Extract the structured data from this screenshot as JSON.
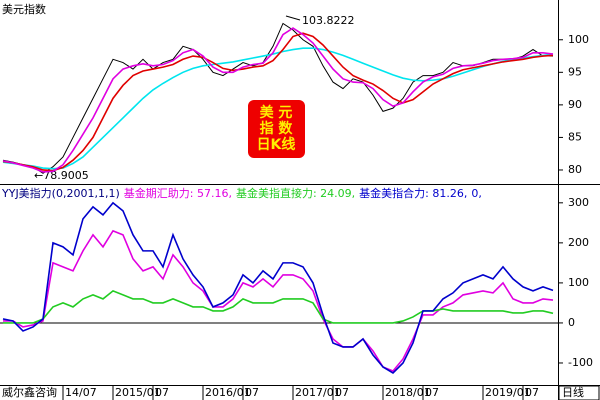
{
  "chart_data": [
    {
      "type": "line",
      "title": "美元指数",
      "annotations": [
        "103.8222",
        "←78.9005"
      ],
      "badge": [
        "美 元",
        "指 数",
        "日K线"
      ],
      "ylim": [
        78,
        105.8
      ],
      "yticks": [
        80,
        85,
        90,
        95,
        100
      ],
      "series": [
        {
          "color": "#000000",
          "values": [
            81.5,
            81.2,
            80.8,
            80.5,
            79.5,
            80.5,
            82,
            85,
            88,
            91,
            94,
            97,
            96.5,
            95.5,
            97,
            95.5,
            96.5,
            97,
            99,
            98.5,
            97,
            95,
            94.5,
            95.5,
            96.5,
            96,
            96.5,
            99,
            102.5,
            101.5,
            100,
            99,
            96,
            93.5,
            92.5,
            94,
            93.5,
            91.5,
            89,
            89.5,
            91,
            93.5,
            94.5,
            94.5,
            95,
            96.5,
            96,
            96,
            96.5,
            97,
            97,
            97,
            97.5,
            98.5,
            97.5,
            97.5
          ]
        },
        {
          "color": "#00e5ee",
          "values": [
            81.2,
            81,
            80.8,
            80.6,
            80.3,
            80.2,
            80.3,
            81,
            82,
            83.5,
            85,
            86.5,
            88,
            89.5,
            91,
            92.3,
            93.3,
            94.2,
            95,
            95.6,
            96,
            96.2,
            96.4,
            96.6,
            96.9,
            97.2,
            97.5,
            97.8,
            98.2,
            98.5,
            98.7,
            98.7,
            98.5,
            98.1,
            97.6,
            97,
            96.4,
            95.8,
            95.2,
            94.6,
            94.1,
            93.8,
            93.7,
            93.8,
            94,
            94.4,
            94.9,
            95.4,
            95.9,
            96.3,
            96.7,
            97,
            97.2,
            97.4,
            97.6,
            97.8
          ]
        },
        {
          "color": "#e00000",
          "values": [
            81.3,
            81.1,
            80.8,
            80.5,
            80,
            79.9,
            80.4,
            81.5,
            83,
            85,
            88,
            91,
            93,
            94.5,
            95.2,
            95.5,
            95.8,
            96.2,
            97,
            97.5,
            97.3,
            96.5,
            95.6,
            95.3,
            95.5,
            95.8,
            96,
            96.8,
            98.5,
            100.5,
            101,
            100.5,
            99.2,
            97.5,
            95.8,
            94.5,
            93.8,
            93.2,
            92.2,
            91,
            90.3,
            90.8,
            92,
            93.2,
            94,
            94.8,
            95.4,
            95.7,
            96,
            96.3,
            96.6,
            96.8,
            97,
            97.3,
            97.5,
            97.6
          ]
        },
        {
          "color": "#e000e0",
          "values": [
            81.4,
            81.1,
            80.7,
            80.3,
            79.7,
            79.8,
            80.8,
            83,
            85.5,
            88,
            91,
            94,
            95.5,
            96,
            96.3,
            96,
            96.2,
            96.8,
            98,
            98.5,
            97.5,
            95.8,
            95,
            95,
            95.8,
            96.2,
            96.4,
            98,
            100.8,
            101.8,
            100.8,
            99.5,
            97.5,
            95.5,
            94,
            93.5,
            93.4,
            92.5,
            90.8,
            89.8,
            90.3,
            92,
            93.5,
            94.3,
            94.7,
            95.6,
            96,
            96.1,
            96.4,
            96.8,
            97,
            97.1,
            97.3,
            98,
            98,
            97.8
          ]
        }
      ]
    },
    {
      "type": "line",
      "title": "YYJ美指力(0,2001,1,1)",
      "header_suffix": "0,",
      "source": "威尔鑫咨询",
      "period": "日线",
      "categories": [
        null,
        null,
        null,
        null,
        null,
        null,
        "14/07",
        null,
        null,
        null,
        null,
        "2015/01",
        null,
        null,
        null,
        "07",
        null,
        null,
        null,
        null,
        "2016/01",
        null,
        null,
        null,
        "07",
        null,
        null,
        null,
        null,
        "2017/01",
        null,
        null,
        null,
        "07",
        null,
        null,
        null,
        null,
        "2018/01",
        null,
        null,
        null,
        "07",
        null,
        null,
        null,
        null,
        null,
        "2019/01",
        null,
        null,
        null,
        "07",
        null,
        null,
        null
      ],
      "ylim": [
        -155,
        342
      ],
      "yticks": [
        -100,
        0,
        100,
        200,
        300
      ],
      "series": [
        {
          "label": "基金期汇助力: 57.16,",
          "color": "#e000e0",
          "values": [
            5,
            5,
            -10,
            -5,
            5,
            150,
            140,
            130,
            180,
            220,
            190,
            230,
            220,
            160,
            130,
            140,
            110,
            170,
            140,
            100,
            80,
            40,
            40,
            60,
            100,
            90,
            110,
            90,
            120,
            120,
            110,
            80,
            10,
            -40,
            -60,
            -60,
            -40,
            -70,
            -110,
            -120,
            -90,
            -40,
            20,
            20,
            40,
            50,
            70,
            75,
            80,
            75,
            100,
            60,
            50,
            50,
            60,
            57.16
          ]
        },
        {
          "label": "基金美指直接力: 24.09,",
          "color": "#22cc22",
          "values": [
            0,
            0,
            0,
            0,
            10,
            40,
            50,
            40,
            60,
            70,
            60,
            80,
            70,
            60,
            60,
            50,
            50,
            60,
            50,
            40,
            40,
            30,
            30,
            40,
            60,
            50,
            50,
            50,
            60,
            60,
            60,
            50,
            10,
            0,
            0,
            0,
            0,
            0,
            0,
            0,
            5,
            15,
            30,
            30,
            35,
            30,
            30,
            30,
            30,
            30,
            30,
            25,
            25,
            30,
            30,
            24.09
          ]
        },
        {
          "label": "基金美指合力: 81.26,",
          "color": "#0000cc",
          "values": [
            10,
            5,
            -20,
            -10,
            10,
            200,
            190,
            170,
            260,
            290,
            270,
            300,
            280,
            220,
            180,
            180,
            140,
            220,
            160,
            120,
            90,
            40,
            50,
            70,
            120,
            100,
            130,
            110,
            150,
            150,
            140,
            100,
            20,
            -50,
            -60,
            -60,
            -40,
            -80,
            -110,
            -125,
            -100,
            -50,
            30,
            30,
            60,
            75,
            100,
            110,
            120,
            110,
            140,
            110,
            90,
            80,
            90,
            81.26
          ]
        }
      ]
    }
  ]
}
